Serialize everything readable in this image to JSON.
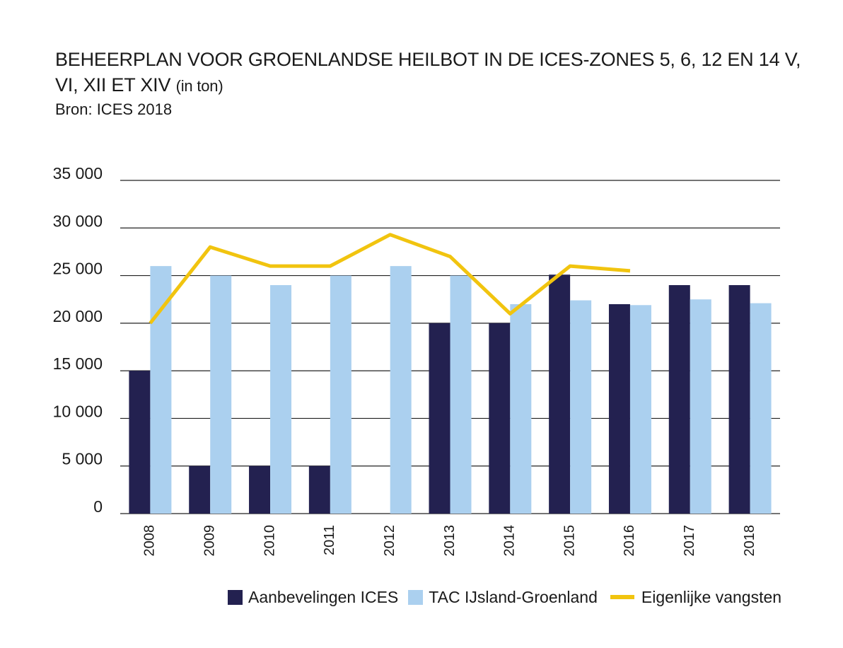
{
  "title": {
    "main": "BEHEERPLAN VOOR GROENLANDSE HEILBOT IN DE ICES-ZONES 5, 6, 12 EN 14  V, VI, XII ET XIV",
    "unit": "(in ton)"
  },
  "source": "Bron: ICES 2018",
  "colors": {
    "ices": "#232150",
    "tac": "#abd0ef",
    "catch": "#f1c40f",
    "grid": "#222222"
  },
  "chart_data": {
    "type": "bar",
    "categories": [
      "2008",
      "2009",
      "2010",
      "2011",
      "2012",
      "2013",
      "2014",
      "2015",
      "2016",
      "2017",
      "2018"
    ],
    "y_ticks": [
      "0",
      "5 000",
      "10 000",
      "15 000",
      "20 000",
      "25 000",
      "30 000",
      "35 000"
    ],
    "ylim": [
      0,
      35000
    ],
    "series": [
      {
        "name": "Aanbevelingen ICES",
        "kind": "bar",
        "values": [
          15000,
          5000,
          5000,
          5000,
          null,
          20000,
          20000,
          25100,
          22000,
          24000,
          24000
        ]
      },
      {
        "name": "TAC IJsland-Groenland",
        "kind": "bar",
        "values": [
          26000,
          25000,
          24000,
          25000,
          26000,
          25000,
          22000,
          22400,
          21900,
          22500,
          22100
        ]
      },
      {
        "name": "Eigenlijke vangsten",
        "kind": "line",
        "values": [
          20000,
          28000,
          26000,
          26000,
          29300,
          27000,
          21000,
          26000,
          25500,
          null,
          null
        ]
      }
    ],
    "legend_position": "bottom-right",
    "grid": true
  }
}
